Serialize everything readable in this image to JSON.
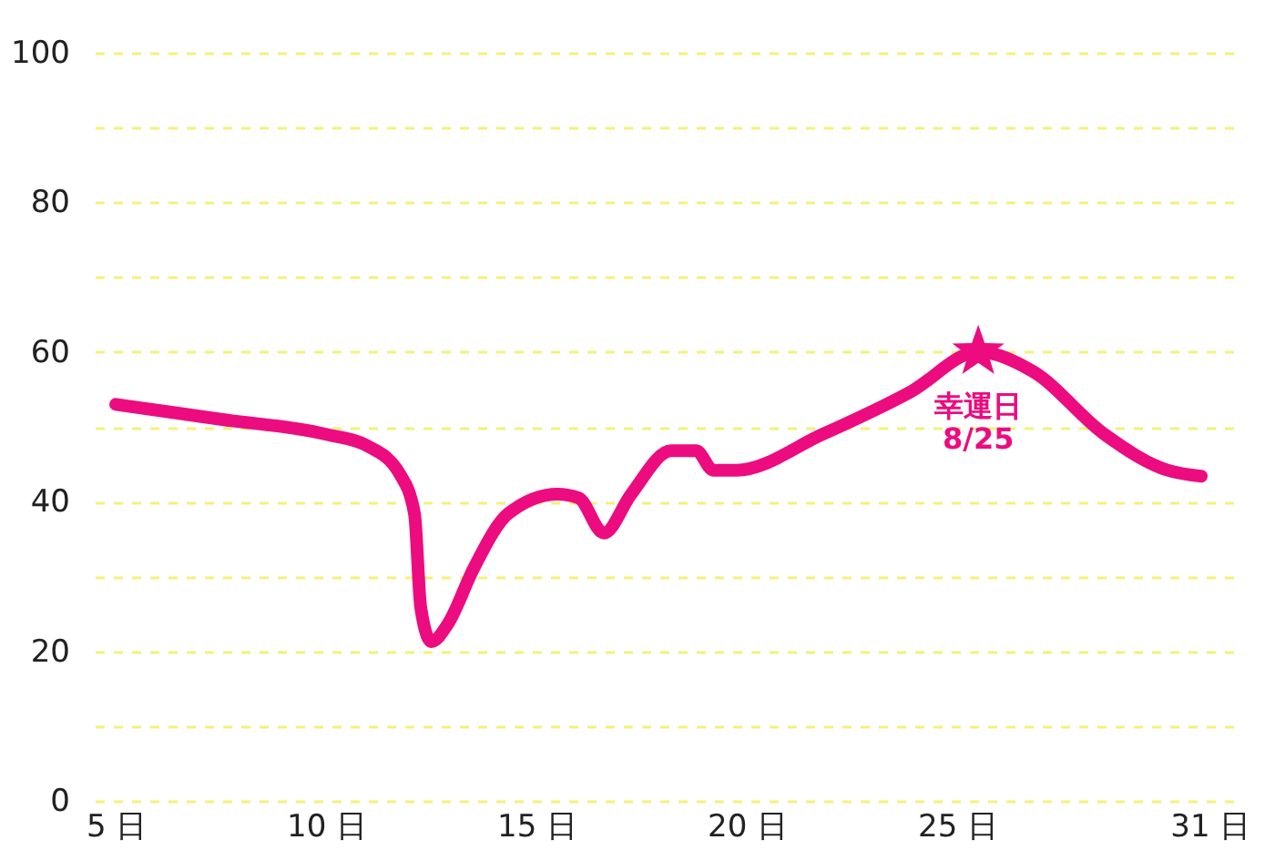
{
  "chart_data": {
    "type": "line",
    "xlim": [
      4.5,
      31.6
    ],
    "ylim": [
      0,
      100
    ],
    "xticks": [
      {
        "value": 5,
        "label": "5 日"
      },
      {
        "value": 10,
        "label": "10 日"
      },
      {
        "value": 15,
        "label": "15 日"
      },
      {
        "value": 20,
        "label": "20 日"
      },
      {
        "value": 25,
        "label": "25 日"
      },
      {
        "value": 31,
        "label": "31 日"
      }
    ],
    "yticks": [
      0,
      {
        "value": 10,
        "label": null
      },
      20,
      {
        "value": 30,
        "label": null
      },
      40,
      {
        "value": 50,
        "label": null
      },
      60,
      {
        "value": 70,
        "label": null
      },
      80,
      {
        "value": 90,
        "label": null
      },
      100
    ],
    "grid": "y",
    "line_style": "solid",
    "series": [
      {
        "type": "line",
        "marker": "none",
        "color": "#ec0c7f",
        "x": [
          5,
          7.5,
          10,
          11,
          11.75,
          12.1,
          12.25,
          12.5,
          12.9,
          13.5,
          14.33,
          15.5,
          16,
          16.6,
          17.25,
          18.2,
          18.8,
          19.2,
          19.75,
          21.8,
          23.9,
          25.5,
          26.8,
          28.5,
          30,
          30.8
        ],
        "values": [
          53,
          51,
          49,
          47.4,
          43.7,
          38.4,
          25.8,
          21.3,
          23.7,
          31,
          38.4,
          41,
          40.5,
          35.8,
          41,
          46.8,
          46.8,
          44.2,
          44.2,
          49,
          54.7,
          60,
          57.4,
          49,
          44.2,
          43.4
        ]
      },
      {
        "type": "scatter",
        "marker": "star",
        "color": "#ec0c7f",
        "x": [
          25.5
        ],
        "values": [
          60
        ]
      }
    ],
    "annotations": [
      {
        "text": "幸運日\n8/25",
        "x": 25.5,
        "y": 60
      }
    ]
  }
}
